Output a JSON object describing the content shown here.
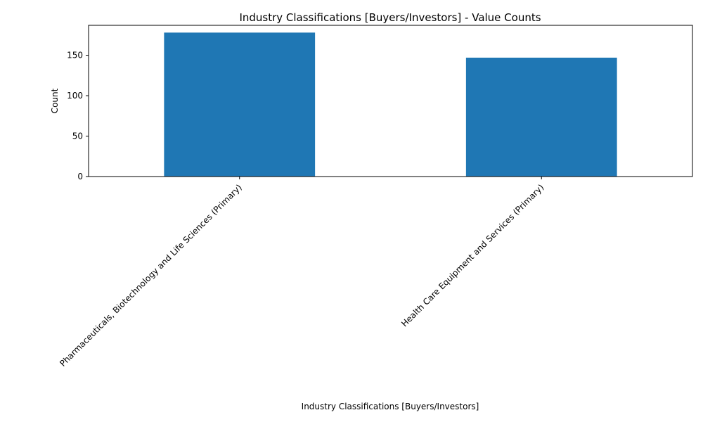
{
  "chart_data": {
    "type": "bar",
    "title": "Industry Classifications [Buyers/Investors] - Value Counts",
    "xlabel": "Industry Classifications [Buyers/Investors]",
    "ylabel": "Count",
    "categories": [
      "Pharmaceuticals, Biotechnology and Life Sciences (Primary)",
      "Health Care Equipment and Services (Primary)"
    ],
    "values": [
      178,
      147
    ],
    "ylim": [
      0,
      187
    ],
    "yticks": [
      0,
      50,
      100,
      150
    ],
    "grid": false,
    "legend": "none",
    "bar_color": "#1f77b4"
  }
}
